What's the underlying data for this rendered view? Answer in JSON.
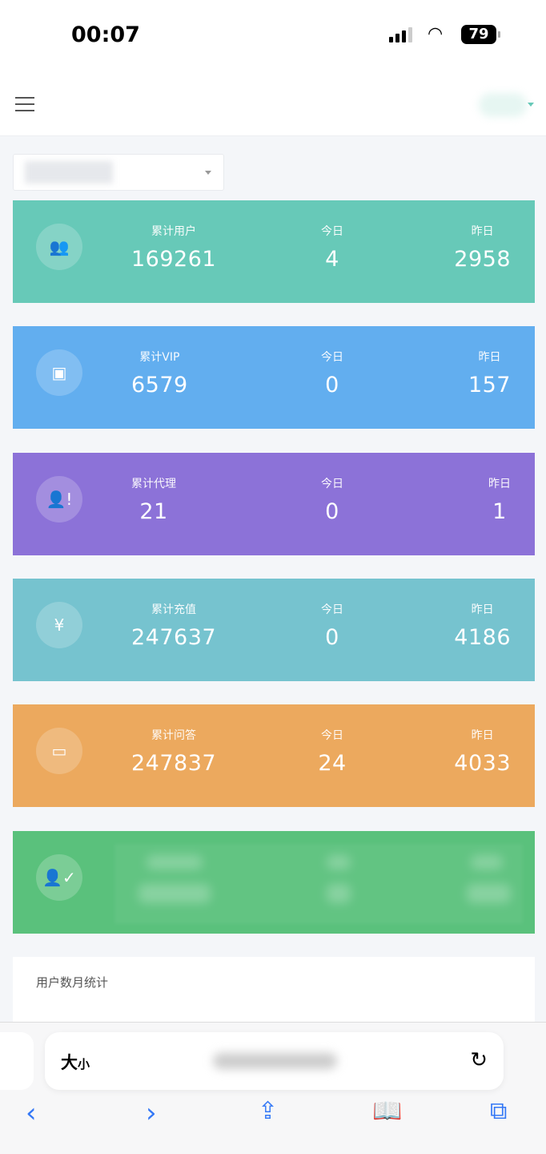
{
  "status_bar": {
    "time": "00:07",
    "battery": "79"
  },
  "header": {
    "menu_icon": "hamburger-icon"
  },
  "cards": [
    {
      "color": "#67c9b8",
      "icon": "users-icon",
      "glyph": "👥",
      "total_label": "累计用户",
      "total": "169261",
      "today_label": "今日",
      "today": "4",
      "yesterday_label": "昨日",
      "yesterday": "2958"
    },
    {
      "color": "#62aeef",
      "icon": "id-card-icon",
      "glyph": "▣",
      "total_label": "累计VIP",
      "total": "6579",
      "today_label": "今日",
      "today": "0",
      "yesterday_label": "昨日",
      "yesterday": "157"
    },
    {
      "color": "#8c72d8",
      "icon": "user-alert-icon",
      "glyph": "👤!",
      "total_label": "累计代理",
      "total": "21",
      "today_label": "今日",
      "today": "0",
      "yesterday_label": "昨日",
      "yesterday": "1"
    },
    {
      "color": "#76c3cf",
      "icon": "yen-icon",
      "glyph": "¥",
      "total_label": "累计充值",
      "total": "247637",
      "today_label": "今日",
      "today": "0",
      "yesterday_label": "昨日",
      "yesterday": "4186"
    },
    {
      "color": "#eca95e",
      "icon": "chat-icon",
      "glyph": "▭",
      "total_label": "累计问答",
      "total": "247837",
      "today_label": "今日",
      "today": "24",
      "yesterday_label": "昨日",
      "yesterday": "4033"
    }
  ],
  "blurred_card": {
    "color": "#5ac17c",
    "icon": "user-check-icon",
    "glyph": "👤✓"
  },
  "panel": {
    "title": "用户数月统计"
  },
  "safari": {
    "text_size": "大",
    "text_size_small": "小"
  }
}
